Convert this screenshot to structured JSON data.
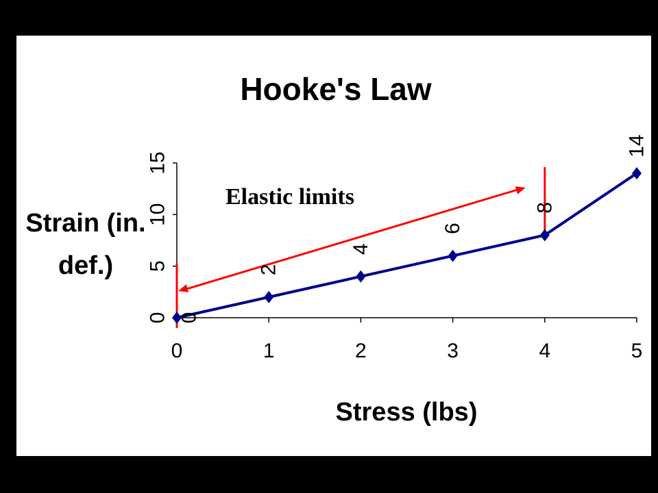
{
  "chart_data": {
    "type": "line",
    "title": "Hooke's Law",
    "xlabel": "Stress (lbs)",
    "ylabel_lines": [
      "Strain (in.",
      "def.)"
    ],
    "x": [
      0,
      1,
      2,
      3,
      4,
      5
    ],
    "series": [
      {
        "values": [
          0,
          2,
          4,
          6,
          8,
          14
        ],
        "color": "#00008B",
        "marker": "diamond"
      }
    ],
    "data_labels": [
      "0",
      "2",
      "4",
      "6",
      "8",
      "14"
    ],
    "xticks": [
      "0",
      "1",
      "2",
      "3",
      "4",
      "5"
    ],
    "yticks": [
      "0",
      "5",
      "10",
      "15"
    ],
    "xlim": [
      0,
      5
    ],
    "ylim": [
      0,
      15
    ],
    "grid": false,
    "legend": "none",
    "annotation": {
      "text": "Elastic limits",
      "color": "#FF0000",
      "bound_x": [
        0,
        4
      ]
    }
  }
}
